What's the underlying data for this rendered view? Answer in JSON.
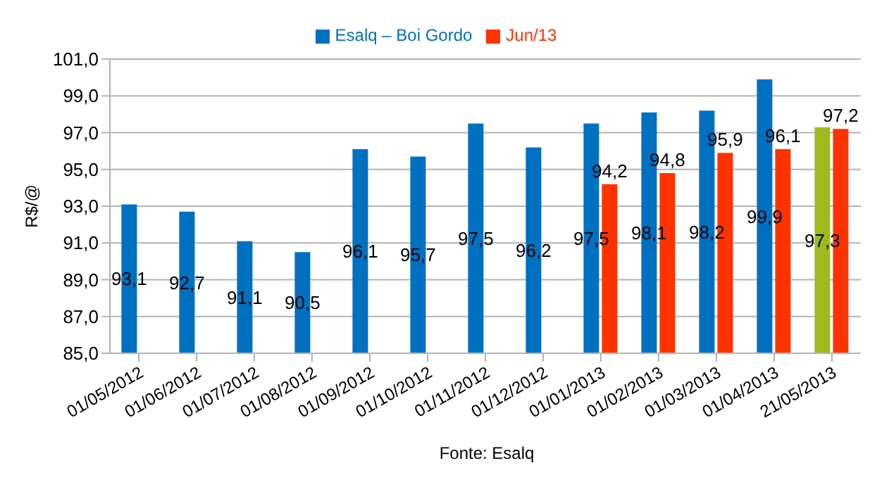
{
  "chart_data": {
    "type": "bar",
    "ylabel": "R$/@",
    "categories": [
      "01/05/2012",
      "01/06/2012",
      "01/07/2012",
      "01/08/2012",
      "01/09/2012",
      "01/10/2012",
      "01/11/2012",
      "01/12/2012",
      "01/01/2013",
      "01/02/2013",
      "01/03/2013",
      "01/04/2013",
      "21/05/2013"
    ],
    "series": [
      {
        "name": "Esalq – Boi Gordo",
        "color": "#0070c0",
        "colors": [
          "#0070c0",
          "#0070c0",
          "#0070c0",
          "#0070c0",
          "#0070c0",
          "#0070c0",
          "#0070c0",
          "#0070c0",
          "#0070c0",
          "#0070c0",
          "#0070c0",
          "#0070c0",
          "#9bbb1e"
        ],
        "values": [
          93.1,
          92.7,
          91.1,
          90.5,
          96.1,
          95.7,
          97.5,
          96.2,
          97.5,
          98.1,
          98.2,
          99.9,
          97.3
        ],
        "value_labels": [
          "93,1",
          "92,7",
          "91,1",
          "90,5",
          "96,1",
          "95,7",
          "97,5",
          "96,2",
          "97,5",
          "98,1",
          "98,2",
          "99,9",
          "97,3"
        ]
      },
      {
        "name": "Jun/13",
        "color": "#ff3300",
        "values": [
          null,
          null,
          null,
          null,
          null,
          null,
          null,
          null,
          94.2,
          94.8,
          95.9,
          96.1,
          97.2
        ],
        "value_labels": [
          null,
          null,
          null,
          null,
          null,
          null,
          null,
          null,
          "94,2",
          "94,8",
          "95,9",
          "96,1",
          "97,2"
        ]
      }
    ],
    "ylim": [
      85,
      101
    ],
    "yticks": [
      {
        "value": 85,
        "label": "85,0"
      },
      {
        "value": 87,
        "label": "87,0"
      },
      {
        "value": 89,
        "label": "89,0"
      },
      {
        "value": 91,
        "label": "91,0"
      },
      {
        "value": 93,
        "label": "93,0"
      },
      {
        "value": 95,
        "label": "95,0"
      },
      {
        "value": 97,
        "label": "97,0"
      },
      {
        "value": 99,
        "label": "99,0"
      },
      {
        "value": 101,
        "label": "101,0"
      }
    ],
    "grid": "y",
    "legend": "top",
    "annotations": [
      "Fonte: Esalq"
    ]
  }
}
